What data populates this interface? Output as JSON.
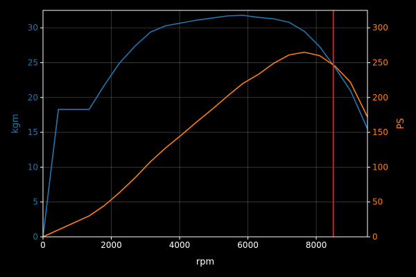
{
  "chart_data": {
    "type": "line",
    "xlabel": "rpm",
    "ylabel_left": "kgm",
    "ylabel_right": "PS",
    "xlim": [
      0,
      9500
    ],
    "ylim_left": [
      0,
      32.5
    ],
    "ylim_right": [
      0,
      325
    ],
    "x_ticks": [
      0,
      2000,
      4000,
      6000,
      8000
    ],
    "y_ticks_left": [
      0,
      5,
      10,
      15,
      20,
      25,
      30
    ],
    "y_ticks_right": [
      0,
      50,
      100,
      150,
      200,
      250,
      300
    ],
    "grid": true,
    "vline": {
      "x": 8500,
      "color": "#d62728"
    },
    "series": [
      {
        "axis": "left",
        "color": "#1f77b4",
        "x": [
          0,
          450,
          1350,
          1800,
          2250,
          2700,
          3150,
          3600,
          4050,
          4500,
          4950,
          5400,
          5850,
          6300,
          6750,
          7200,
          7650,
          8100,
          8550,
          9000,
          9500
        ],
        "values": [
          0,
          18.3,
          18.3,
          21.8,
          25.0,
          27.4,
          29.4,
          30.3,
          30.7,
          31.1,
          31.4,
          31.7,
          31.8,
          31.5,
          31.3,
          30.8,
          29.5,
          27.3,
          24.3,
          21.0,
          15.5
        ]
      },
      {
        "axis": "right",
        "color": "#ff7f0e",
        "x": [
          0,
          450,
          900,
          1350,
          1800,
          2250,
          2700,
          3150,
          3600,
          4050,
          4500,
          4950,
          5400,
          5850,
          6300,
          6750,
          7200,
          7650,
          8100,
          8550,
          9000,
          9500
        ],
        "values": [
          0,
          10,
          20,
          30,
          45,
          64,
          85,
          108,
          128,
          146,
          165,
          183,
          202,
          220,
          233,
          249,
          261,
          265,
          260,
          245,
          222,
          172
        ]
      }
    ]
  }
}
